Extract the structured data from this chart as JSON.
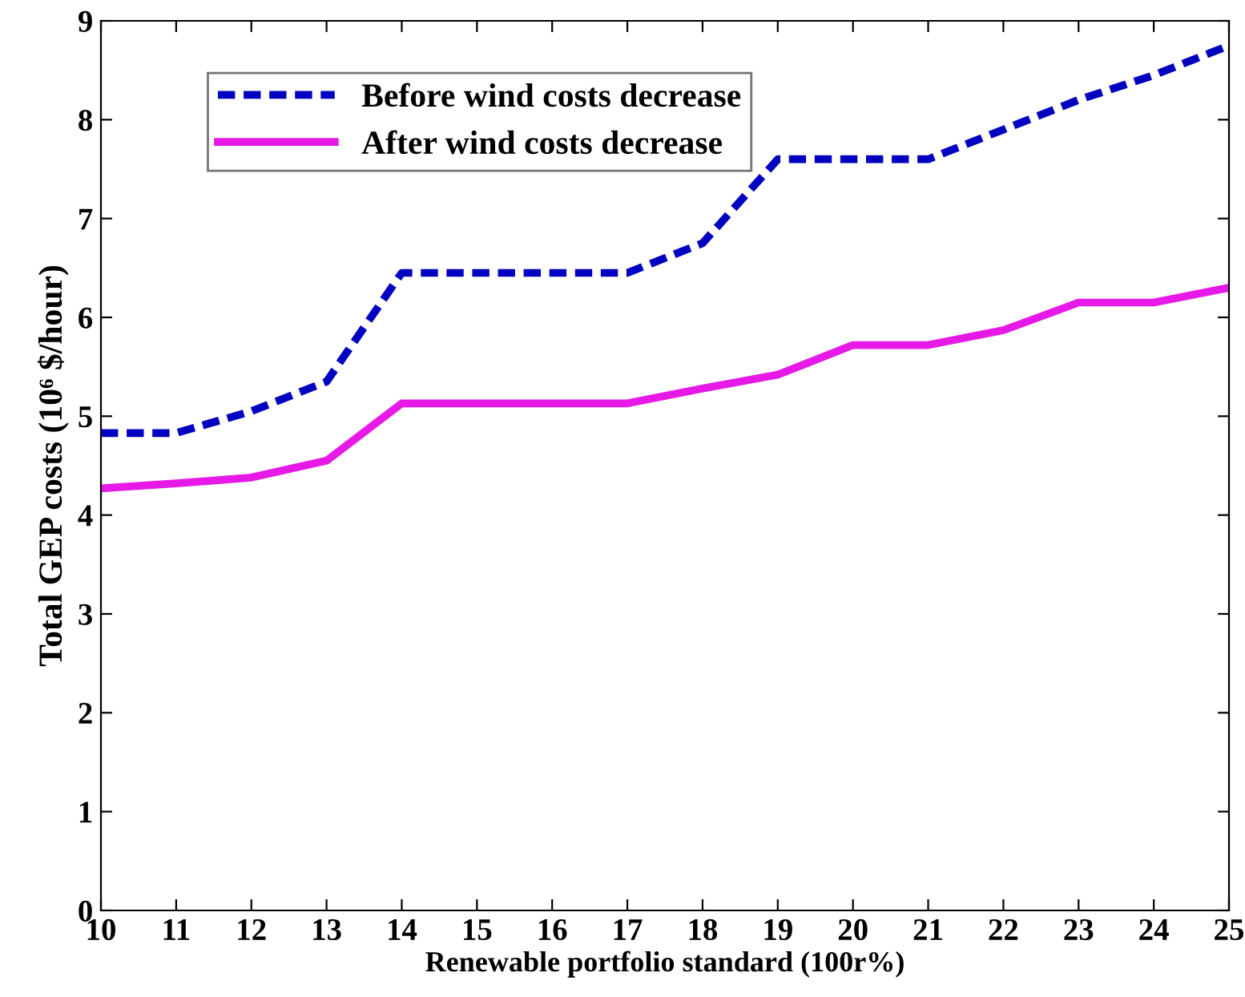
{
  "chart_data": {
    "type": "line",
    "xlabel": "Renewable portfolio standard (100r%)",
    "ylabel": "Total GEP costs (10⁶ $/hour)",
    "x": [
      10,
      11,
      12,
      13,
      14,
      15,
      16,
      17,
      18,
      19,
      20,
      21,
      22,
      23,
      24,
      25
    ],
    "series": [
      {
        "name": "Before wind costs decrease",
        "color": "#0000c0",
        "line_style": "dashed",
        "values": [
          4.83,
          4.83,
          5.05,
          5.35,
          6.45,
          6.45,
          6.45,
          6.45,
          6.75,
          7.6,
          7.6,
          7.6,
          7.9,
          8.2,
          8.45,
          8.75
        ]
      },
      {
        "name": "After wind costs decrease",
        "color": "#e619e6",
        "line_style": "solid",
        "values": [
          4.27,
          4.32,
          4.38,
          4.55,
          5.13,
          5.13,
          5.13,
          5.13,
          5.28,
          5.42,
          5.72,
          5.72,
          5.87,
          6.15,
          6.15,
          6.3
        ]
      }
    ],
    "xlim": [
      10,
      25
    ],
    "xticks": [
      10,
      11,
      12,
      13,
      14,
      15,
      16,
      17,
      18,
      19,
      20,
      21,
      22,
      23,
      24,
      25
    ],
    "ylim": [
      0,
      9
    ],
    "yticks": [
      0,
      1,
      2,
      3,
      4,
      5,
      6,
      7,
      8,
      9
    ],
    "grid": false,
    "legend": "top left",
    "marker": "none"
  }
}
